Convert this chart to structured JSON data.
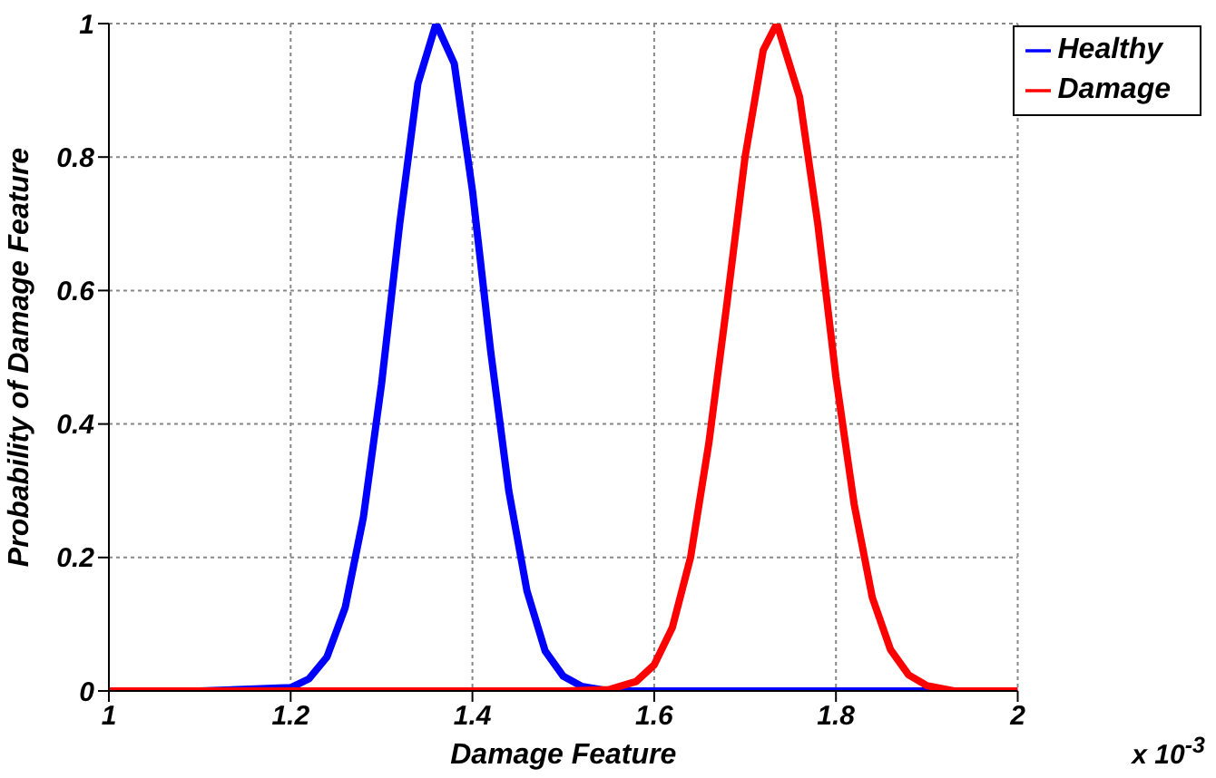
{
  "chart_data": {
    "type": "line",
    "xlabel": "Damage Feature",
    "ylabel": "Probability of Damage Feature",
    "annotations": [
      "x 10$^{-3}$"
    ],
    "xlim": [
      1,
      2
    ],
    "xticks": [
      1,
      1.2,
      1.4,
      1.6,
      1.8,
      2
    ],
    "ylim": [
      0,
      1
    ],
    "yticks": [
      0,
      0.2,
      0.4,
      0.6,
      0.8,
      1
    ],
    "grid": true,
    "legend": "top right",
    "series": [
      {
        "name": "Healthy",
        "color": "#0000ff",
        "x": [
          1,
          1.1,
          1.2,
          1.22,
          1.24,
          1.26,
          1.28,
          1.3,
          1.32,
          1.34,
          1.36,
          1.38,
          1.4,
          1.42,
          1.44,
          1.46,
          1.48,
          1.5,
          1.52,
          1.55,
          1.6,
          1.8,
          2
        ],
        "values": [
          0,
          0,
          0.005,
          0.018,
          0.051,
          0.125,
          0.26,
          0.46,
          0.7,
          0.91,
          1,
          0.94,
          0.75,
          0.51,
          0.3,
          0.15,
          0.06,
          0.022,
          0.007,
          0,
          0,
          0,
          0
        ]
      },
      {
        "name": "Damage",
        "color": "#ff0000",
        "x": [
          1,
          1.2,
          1.5,
          1.55,
          1.58,
          1.6,
          1.62,
          1.64,
          1.66,
          1.68,
          1.7,
          1.72,
          1.735,
          1.76,
          1.78,
          1.8,
          1.82,
          1.84,
          1.86,
          1.88,
          1.9,
          1.93,
          2
        ],
        "values": [
          0,
          0,
          0,
          0.002,
          0.014,
          0.039,
          0.095,
          0.2,
          0.37,
          0.58,
          0.8,
          0.96,
          1,
          0.89,
          0.7,
          0.47,
          0.28,
          0.14,
          0.062,
          0.024,
          0.008,
          0,
          0
        ]
      }
    ]
  }
}
